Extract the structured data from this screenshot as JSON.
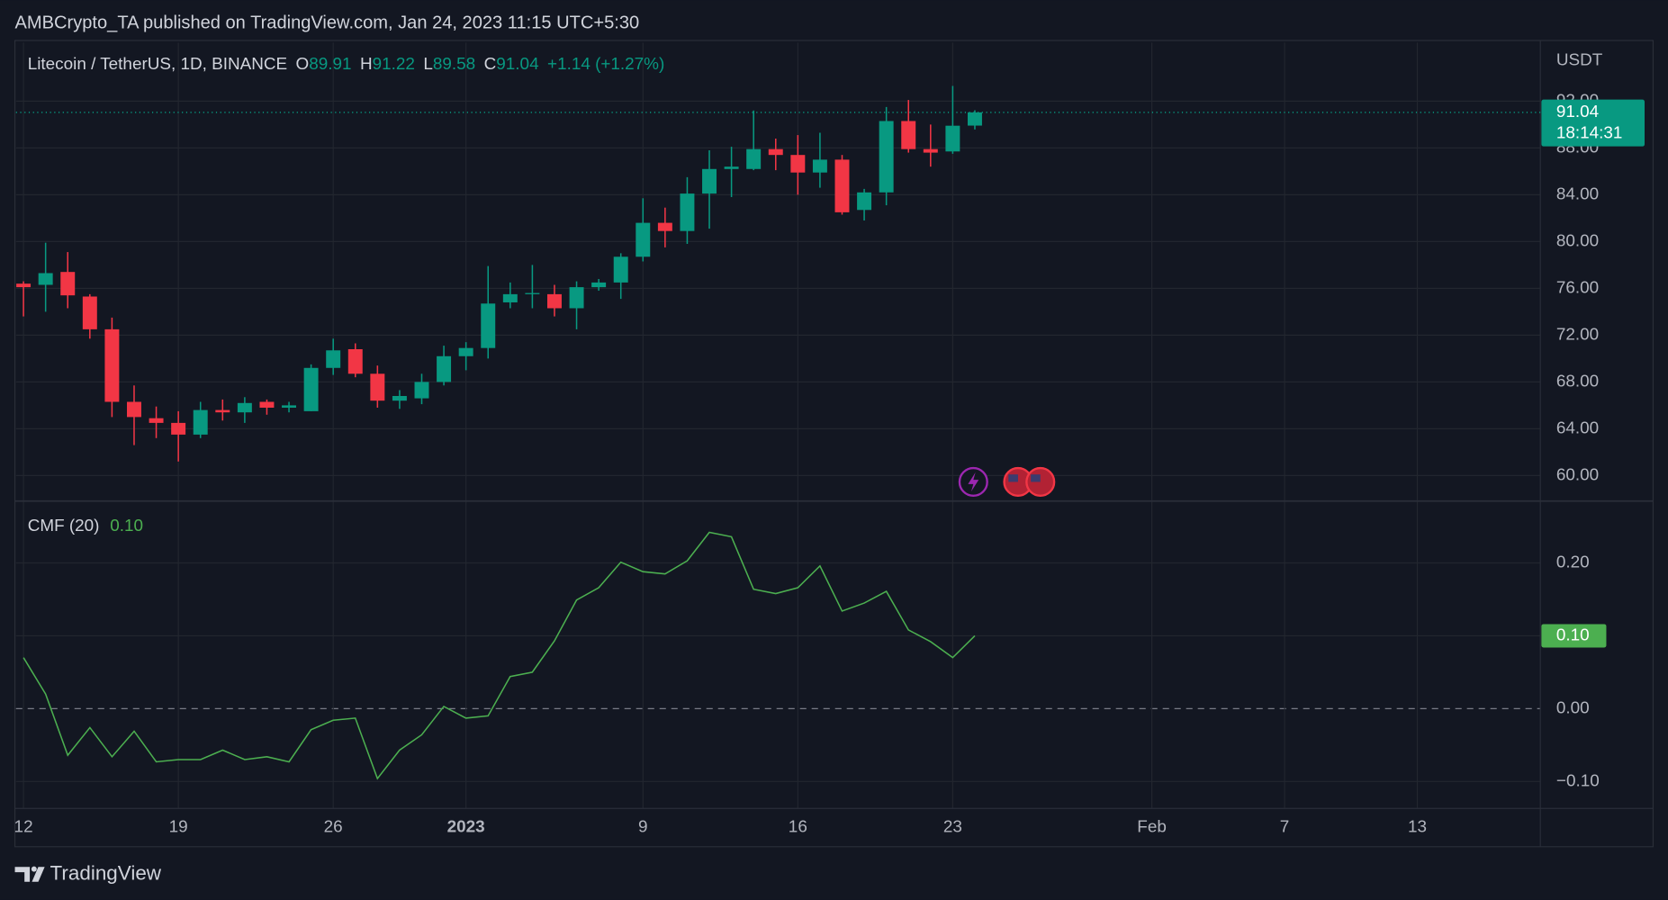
{
  "header": {
    "publisher": "AMBCrypto_TA published on TradingView.com, Jan 24, 2023 11:15 UTC+5:30",
    "brand": "TradingView"
  },
  "chart_data": [
    {
      "type": "candlestick",
      "title": "Litecoin / TetherUS, 1D, BINANCE",
      "open_label": "O",
      "high_label": "H",
      "low_label": "L",
      "close_label": "C",
      "change": "+1.14 (+1.27%)",
      "unit": "USDT",
      "countdown": "18:14:31",
      "x": [
        0,
        1,
        2,
        3,
        4,
        5,
        6,
        7,
        8,
        9,
        10,
        11,
        12,
        13,
        14,
        15,
        16,
        17,
        18,
        19,
        20,
        21,
        22,
        23,
        24,
        25,
        26,
        27,
        28,
        29,
        30,
        31,
        32,
        33,
        34,
        35,
        36,
        37,
        38,
        39,
        40,
        41,
        42,
        43
      ],
      "open": [
        76.4,
        76.3,
        77.4,
        75.3,
        72.5,
        66.3,
        64.9,
        64.5,
        63.5,
        65.6,
        65.4,
        66.3,
        65.8,
        65.5,
        69.2,
        70.8,
        68.7,
        66.4,
        66.6,
        68.0,
        70.2,
        70.9,
        74.8,
        75.5,
        75.5,
        74.3,
        76.1,
        76.5,
        78.7,
        81.6,
        80.9,
        84.1,
        86.2,
        86.2,
        87.9,
        87.4,
        85.9,
        87.0,
        82.7,
        84.2,
        90.3,
        87.9,
        87.7,
        89.91
      ],
      "high": [
        76.6,
        79.9,
        79.1,
        75.5,
        73.5,
        67.7,
        65.9,
        65.5,
        66.3,
        66.5,
        66.7,
        66.5,
        66.3,
        69.5,
        71.7,
        71.3,
        69.4,
        67.3,
        68.7,
        71.1,
        71.4,
        77.9,
        76.5,
        78.0,
        76.3,
        76.6,
        76.8,
        79.0,
        83.7,
        82.9,
        85.5,
        87.8,
        88.1,
        91.2,
        88.8,
        89.1,
        89.3,
        87.4,
        84.5,
        91.5,
        92.1,
        90.0,
        93.3,
        91.22
      ],
      "low": [
        73.6,
        74.0,
        74.3,
        71.7,
        65.0,
        62.6,
        63.2,
        61.2,
        63.2,
        64.7,
        64.5,
        65.2,
        65.4,
        65.5,
        68.6,
        68.4,
        65.8,
        65.7,
        66.1,
        67.7,
        69.0,
        70.0,
        74.3,
        74.3,
        73.6,
        72.5,
        75.8,
        75.1,
        78.3,
        79.5,
        79.8,
        81.1,
        83.8,
        86.1,
        86.1,
        84.0,
        84.6,
        82.3,
        81.8,
        83.1,
        87.6,
        86.4,
        87.5,
        89.58
      ],
      "close": [
        76.1,
        77.3,
        75.4,
        72.5,
        66.3,
        65.0,
        64.5,
        63.5,
        65.6,
        65.4,
        66.2,
        65.8,
        66.0,
        69.2,
        70.7,
        68.7,
        66.4,
        66.8,
        68.0,
        70.2,
        70.9,
        74.7,
        75.5,
        75.6,
        74.3,
        76.1,
        76.5,
        78.7,
        81.6,
        80.9,
        84.1,
        86.2,
        86.4,
        87.9,
        87.4,
        85.9,
        87.0,
        82.5,
        84.2,
        90.3,
        87.9,
        87.6,
        89.9,
        91.04
      ],
      "up_color": "#089981",
      "down_color": "#f23645",
      "xlim": [
        -0.34,
        68.56
      ],
      "ylim": [
        57.82,
        97.0
      ],
      "yticks": [
        {
          "value": 60,
          "label": "60.00"
        },
        {
          "value": 64,
          "label": "64.00"
        },
        {
          "value": 68,
          "label": "68.00"
        },
        {
          "value": 72,
          "label": "72.00"
        },
        {
          "value": 76,
          "label": "76.00"
        },
        {
          "value": 80,
          "label": "80.00"
        },
        {
          "value": 84,
          "label": "84.00"
        },
        {
          "value": 88,
          "label": "88.00"
        },
        {
          "value": 92,
          "label": "92.00"
        }
      ],
      "grid": true
    },
    {
      "type": "line",
      "title": "CMF (20)",
      "last_value_label": "0.10",
      "color": "#4caf50",
      "x": [
        0,
        1,
        2,
        3,
        4,
        5,
        6,
        7,
        8,
        9,
        10,
        11,
        12,
        13,
        14,
        15,
        16,
        17,
        18,
        19,
        20,
        21,
        22,
        23,
        24,
        25,
        26,
        27,
        28,
        29,
        30,
        31,
        32,
        33,
        34,
        35,
        36,
        37,
        38,
        39,
        40,
        41,
        42,
        43
      ],
      "values": [
        0.07,
        0.02,
        -0.064,
        -0.026,
        -0.066,
        -0.031,
        -0.073,
        -0.07,
        -0.07,
        -0.057,
        -0.07,
        -0.066,
        -0.073,
        -0.029,
        -0.016,
        -0.013,
        -0.096,
        -0.057,
        -0.036,
        0.003,
        -0.013,
        -0.01,
        0.044,
        0.05,
        0.093,
        0.149,
        0.166,
        0.201,
        0.188,
        0.185,
        0.203,
        0.242,
        0.236,
        0.164,
        0.158,
        0.166,
        0.196,
        0.134,
        0.145,
        0.161,
        0.108,
        0.092,
        0.07,
        0.1
      ],
      "xlim": [
        -0.34,
        68.56
      ],
      "ylim": [
        -0.137,
        0.285
      ],
      "yticks": [
        {
          "value": -0.1,
          "label": "−0.10"
        },
        {
          "value": 0,
          "label": "0.00"
        },
        {
          "value": 0.1,
          "label": "0.10"
        },
        {
          "value": 0.2,
          "label": "0.20"
        }
      ],
      "xticks": [
        {
          "value": 0,
          "label": "12"
        },
        {
          "value": 7,
          "label": "19"
        },
        {
          "value": 14,
          "label": "26"
        },
        {
          "value": 20,
          "label": "2023"
        },
        {
          "value": 28,
          "label": "9"
        },
        {
          "value": 35,
          "label": "16"
        },
        {
          "value": 42,
          "label": "23"
        },
        {
          "value": 51,
          "label": "Feb"
        },
        {
          "value": 57,
          "label": "7"
        },
        {
          "value": 63,
          "label": "13"
        }
      ],
      "grid": true
    }
  ]
}
